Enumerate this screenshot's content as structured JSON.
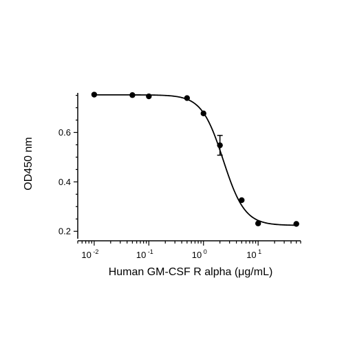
{
  "chart_data": {
    "type": "scatter",
    "xlabel": "Human GM-CSF R alpha (μg/mL)",
    "ylabel": "OD450 nm",
    "xscale": "log",
    "xlim": [
      0.005,
      60
    ],
    "ylim": [
      0.17,
      0.76
    ],
    "x_ticks": [
      {
        "value": 0.01,
        "base": "10",
        "exp": "-2"
      },
      {
        "value": 0.1,
        "base": "10",
        "exp": "-1"
      },
      {
        "value": 1,
        "base": "10",
        "exp": "0"
      },
      {
        "value": 10,
        "base": "10",
        "exp": "1"
      }
    ],
    "y_ticks": [
      {
        "value": 0.2,
        "label": "0.2"
      },
      {
        "value": 0.4,
        "label": "0.4"
      },
      {
        "value": 0.6,
        "label": "0.6"
      }
    ],
    "grid": false,
    "points": [
      {
        "x": 0.01,
        "y": 0.753
      },
      {
        "x": 0.05,
        "y": 0.751
      },
      {
        "x": 0.1,
        "y": 0.746
      },
      {
        "x": 0.5,
        "y": 0.739
      },
      {
        "x": 1,
        "y": 0.677
      },
      {
        "x": 2,
        "y": 0.548,
        "err": 0.04
      },
      {
        "x": 5,
        "y": 0.326
      },
      {
        "x": 10,
        "y": 0.232
      },
      {
        "x": 50,
        "y": 0.23
      }
    ],
    "fit_curve": {
      "model": "4PL",
      "top": 0.752,
      "bottom": 0.224,
      "ec50": 2.3,
      "hill": 2.2
    },
    "colors": {
      "marker": "#000000",
      "line": "#000000"
    }
  }
}
